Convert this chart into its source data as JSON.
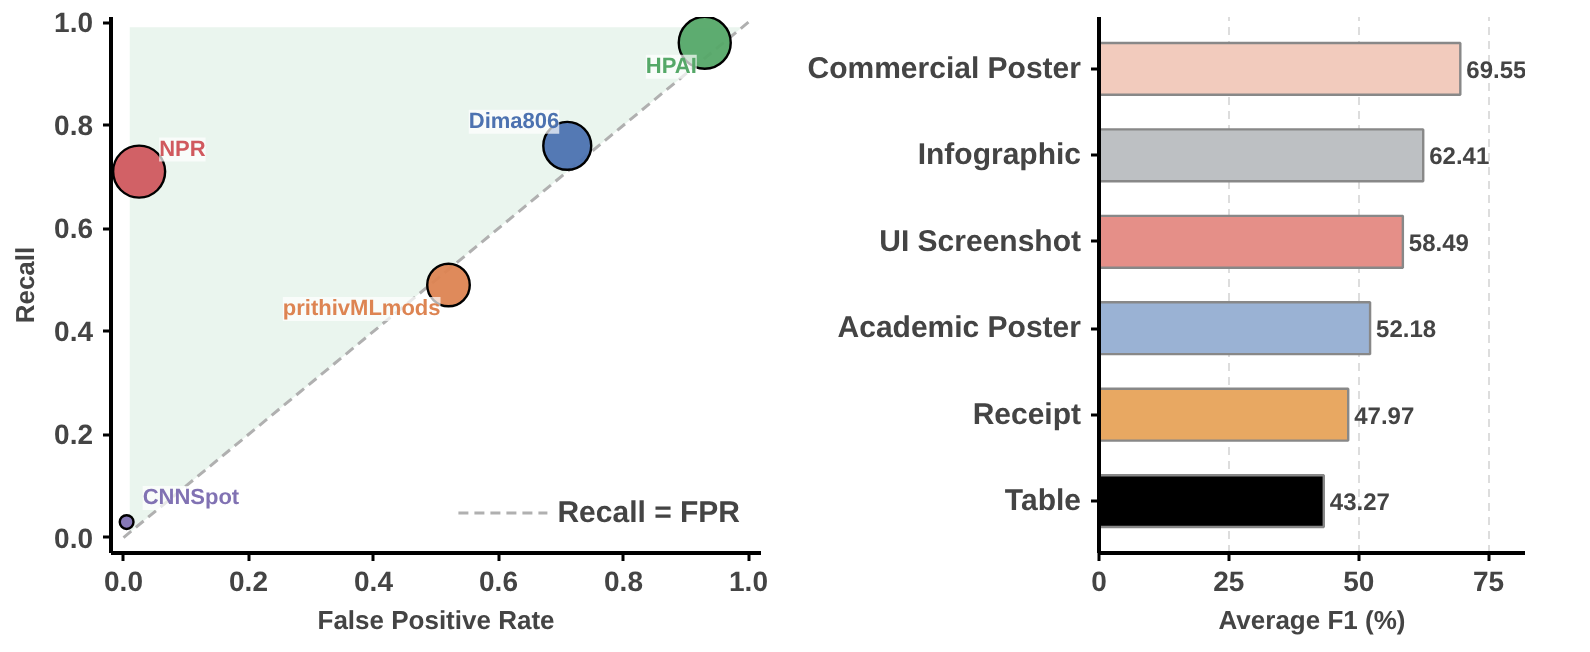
{
  "chart_data": [
    {
      "type": "bubble",
      "xlabel": "False Positive Rate",
      "ylabel": "Recall",
      "xlim": [
        -0.02,
        1.02
      ],
      "ylim": [
        -0.03,
        1.01
      ],
      "xticks": [
        {
          "value": 0,
          "label": "0.0"
        },
        0.2,
        0.4,
        0.6,
        0.8,
        {
          "value": 1,
          "label": "1.0"
        }
      ],
      "yticks": [
        {
          "value": 0,
          "label": "0.0"
        },
        0.2,
        0.4,
        0.6,
        0.8,
        {
          "value": 1,
          "label": "1.0"
        }
      ],
      "grid": false,
      "legend": "bottom right",
      "series": [
        {
          "type": "area",
          "color": "#eaf5ee",
          "x": [
            0.01,
            0.99
          ],
          "values": [
            0.99,
            0.99
          ]
        },
        {
          "type": "line",
          "name": "Recall = FPR",
          "color": "#b0b0b0",
          "line_style": "dashed",
          "x": [
            0,
            1
          ],
          "values": [
            0,
            1
          ]
        },
        {
          "name": "NPR",
          "color": "#d0595e",
          "x": [
            0.025
          ],
          "values": [
            0.71
          ],
          "sizes": [
            1
          ]
        },
        {
          "name": "Dima806",
          "color": "#4c72b0",
          "x": [
            0.71
          ],
          "values": [
            0.76
          ],
          "sizes": [
            0.85
          ]
        },
        {
          "name": "HPAI",
          "color": "#55a868",
          "x": [
            0.93
          ],
          "values": [
            0.96
          ],
          "sizes": [
            1
          ]
        },
        {
          "name": "prithivMLmods",
          "color": "#dd8452",
          "x": [
            0.52
          ],
          "values": [
            0.49
          ],
          "sizes": [
            0.67
          ]
        },
        {
          "name": "CNNSpot",
          "color": "#8172b3",
          "x": [
            0.005
          ],
          "values": [
            0.03
          ],
          "sizes": [
            0.07
          ]
        }
      ]
    },
    {
      "type": "bar",
      "orientation": "horizontal",
      "xlabel": "Average F1 (%)",
      "categories": [
        "Commercial Poster",
        "Infographic",
        "UI Screenshot",
        "Academic Poster",
        "Receipt",
        "Table"
      ],
      "values": [
        69.55,
        62.41,
        58.49,
        52.18,
        47.97,
        43.27
      ],
      "colors": [
        "#f2cbbd",
        "#bdc0c3",
        "#e58f88",
        "#9ab2d4",
        "#e8a862",
        "#000000"
      ],
      "xlim": [
        0,
        82
      ],
      "xticks": [
        0,
        25,
        50,
        75
      ],
      "grid": "x",
      "data_labels": true
    }
  ]
}
